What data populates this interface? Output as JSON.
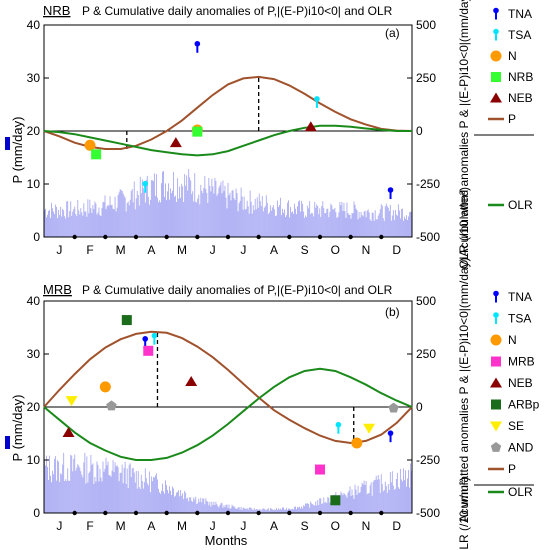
{
  "chart_data": [
    {
      "type": "line",
      "panel_label": "(a)",
      "region": "NRB",
      "title": "P &  Cumulative daily anomalies of P,|(E-P)i10<0| and OLR",
      "xlabel": "",
      "ylabel_left": "P (mm/day)",
      "ylabel_right": "Acumulatted anomalies P & |(E-P)i10<0|(mm/day)",
      "ylabel_right2": "OLR (/10 w/m²)",
      "ylim_left": [
        0,
        40
      ],
      "ylim_right": [
        -500,
        500
      ],
      "yticks_left": [
        "0",
        "10",
        "20",
        "30",
        "40"
      ],
      "yticks_right": [
        "-500",
        "-250",
        "0",
        "250",
        "500"
      ],
      "categories": [
        "J",
        "F",
        "M",
        "A",
        "M",
        "J",
        "J",
        "A",
        "S",
        "O",
        "N",
        "D"
      ],
      "bars_series": {
        "name": "P",
        "color": "#8d8ff0",
        "axis": "left"
      },
      "series": [
        {
          "name": "P",
          "color": "#a0522d",
          "axis": "right",
          "x": [
            0,
            0.5,
            1,
            1.5,
            2,
            2.5,
            3,
            3.5,
            4,
            4.5,
            5,
            5.5,
            6,
            6.5,
            7,
            7.5,
            8,
            8.5,
            9,
            9.5,
            10,
            10.5,
            11,
            11.5,
            12
          ],
          "values": [
            0,
            -25,
            -55,
            -75,
            -85,
            -85,
            -70,
            -40,
            0,
            50,
            110,
            170,
            220,
            248,
            255,
            245,
            215,
            175,
            130,
            90,
            55,
            30,
            10,
            2,
            0
          ]
        },
        {
          "name": "OLR",
          "color": "#1a8a1a",
          "axis": "right",
          "x": [
            0,
            0.5,
            1,
            1.5,
            2,
            2.5,
            3,
            3.5,
            4,
            4.5,
            5,
            5.5,
            6,
            6.5,
            7,
            7.5,
            8,
            8.5,
            9,
            9.5,
            10,
            10.5,
            11,
            11.5,
            12
          ],
          "values": [
            0,
            -5,
            -15,
            -30,
            -45,
            -60,
            -75,
            -90,
            -100,
            -110,
            -115,
            -110,
            -95,
            -70,
            -45,
            -20,
            0,
            15,
            25,
            25,
            20,
            12,
            5,
            0,
            0
          ]
        }
      ],
      "dashed_markers": [
        {
          "x": 2.7,
          "y_right": -90
        },
        {
          "x": 7.0,
          "y_right": 250
        }
      ],
      "legend": [
        "TNA",
        "TSA",
        "N",
        "NRB",
        "NEB",
        "P",
        "OLR"
      ],
      "markers": [
        {
          "name": "TNA",
          "shape": "pin",
          "color": "#0000ff",
          "x": 5.0,
          "y_right": 395
        },
        {
          "name": "TNA",
          "shape": "pin",
          "color": "#0000ff",
          "x": 11.3,
          "y_right": -295
        },
        {
          "name": "TSA",
          "shape": "pin",
          "color": "#00e5ff",
          "x": 3.3,
          "y_right": -265
        },
        {
          "name": "TSA",
          "shape": "pin",
          "color": "#00e5ff",
          "x": 5.0,
          "y_right": 0
        },
        {
          "name": "TSA",
          "shape": "pin",
          "color": "#00e5ff",
          "x": 8.9,
          "y_right": 135
        },
        {
          "name": "N",
          "shape": "circle",
          "color": "#ff9900",
          "x": 1.5,
          "y_right": -67
        },
        {
          "name": "N",
          "shape": "circle",
          "color": "#ff9900",
          "x": 5.0,
          "y_right": 5
        },
        {
          "name": "NRB",
          "shape": "square",
          "color": "#33ff33",
          "x": 1.7,
          "y_right": -110
        },
        {
          "name": "NRB",
          "shape": "square",
          "color": "#33ff33",
          "x": 5.0,
          "y_right": -3
        },
        {
          "name": "NEB",
          "shape": "triangle",
          "color": "#8b0000",
          "x": 4.3,
          "y_right": -55
        },
        {
          "name": "NEB",
          "shape": "triangle",
          "color": "#8b0000",
          "x": 8.7,
          "y_right": 20
        }
      ],
      "bar_envelope_x": [
        0,
        0.5,
        1,
        1.5,
        2,
        2.5,
        3,
        3.5,
        4,
        4.5,
        5,
        5.5,
        6,
        6.5,
        7,
        7.5,
        8,
        8.5,
        9,
        9.5,
        10,
        10.5,
        11,
        11.5,
        12
      ],
      "bar_envelope": [
        6,
        6,
        6,
        6.5,
        7,
        8,
        9.5,
        11,
        12,
        12,
        11,
        10,
        9,
        8,
        7.5,
        7,
        6.5,
        6,
        6,
        6,
        6,
        5.5,
        5.5,
        5.5,
        5.5
      ]
    },
    {
      "type": "line",
      "panel_label": "(b)",
      "region": "MRB",
      "title": "P &  Cumulative daily anomalies of P,|(E-P)i10<0| and OLR",
      "xlabel": "Months",
      "ylabel_left": "P (mm/day)",
      "ylabel_right": "Acumulatted anomalies P & |(E-P)i10<0|(mm/day)",
      "ylabel_right2": "OLR (/10 w/m²)",
      "ylim_left": [
        0,
        40
      ],
      "ylim_right": [
        -500,
        500
      ],
      "yticks_left": [
        "0",
        "10",
        "20",
        "30",
        "40"
      ],
      "yticks_right": [
        "-500",
        "-250",
        "0",
        "250",
        "500"
      ],
      "categories": [
        "J",
        "F",
        "M",
        "A",
        "M",
        "J",
        "J",
        "A",
        "S",
        "O",
        "N",
        "D"
      ],
      "bars_series": {
        "name": "P",
        "color": "#8d8ff0",
        "axis": "left"
      },
      "series": [
        {
          "name": "P",
          "color": "#a0522d",
          "axis": "right",
          "x": [
            0,
            0.5,
            1,
            1.5,
            2,
            2.5,
            3,
            3.5,
            4,
            4.5,
            5,
            5.5,
            6,
            6.5,
            7,
            7.5,
            8,
            8.5,
            9,
            9.5,
            10,
            10.5,
            11,
            11.5,
            12
          ],
          "values": [
            0,
            80,
            155,
            225,
            280,
            320,
            345,
            355,
            350,
            325,
            285,
            235,
            175,
            110,
            45,
            -15,
            -60,
            -100,
            -135,
            -160,
            -170,
            -160,
            -130,
            -75,
            0
          ]
        },
        {
          "name": "OLR",
          "color": "#1a8a1a",
          "axis": "right",
          "x": [
            0,
            0.5,
            1,
            1.5,
            2,
            2.5,
            3,
            3.5,
            4,
            4.5,
            5,
            5.5,
            6,
            6.5,
            7,
            7.5,
            8,
            8.5,
            9,
            9.5,
            10,
            10.5,
            11,
            11.5,
            12
          ],
          "values": [
            0,
            -60,
            -120,
            -170,
            -205,
            -235,
            -250,
            -250,
            -240,
            -215,
            -180,
            -135,
            -80,
            -20,
            40,
            95,
            140,
            170,
            180,
            170,
            140,
            105,
            65,
            30,
            0
          ]
        }
      ],
      "dashed_markers": [
        {
          "x": 3.7,
          "y_right": 355
        },
        {
          "x": 10.1,
          "y_right": -170
        }
      ],
      "legend": [
        "TNA",
        "TSA",
        "N",
        "MRB",
        "NEB",
        "ARBp",
        "SE",
        "AND",
        "P",
        "OLR"
      ],
      "markers": [
        {
          "name": "TNA",
          "shape": "pin",
          "color": "#0000ff",
          "x": 3.3,
          "y_right": 305
        },
        {
          "name": "TNA",
          "shape": "pin",
          "color": "#0000ff",
          "x": 11.3,
          "y_right": -140
        },
        {
          "name": "TSA",
          "shape": "pin",
          "color": "#00e5ff",
          "x": 3.6,
          "y_right": 320
        },
        {
          "name": "TSA",
          "shape": "pin",
          "color": "#00e5ff",
          "x": 9.6,
          "y_right": -100
        },
        {
          "name": "N",
          "shape": "circle",
          "color": "#ff9900",
          "x": 2.0,
          "y_right": 95
        },
        {
          "name": "N",
          "shape": "circle",
          "color": "#ff9900",
          "x": 10.2,
          "y_right": -170
        },
        {
          "name": "MRB",
          "shape": "square",
          "color": "#ff33cc",
          "x": 3.4,
          "y_right": 265
        },
        {
          "name": "MRB",
          "shape": "square",
          "color": "#ff33cc",
          "x": 9.0,
          "y_right": -295
        },
        {
          "name": "NEB",
          "shape": "triangle",
          "color": "#8b0000",
          "x": 0.8,
          "y_right": -120
        },
        {
          "name": "NEB",
          "shape": "triangle",
          "color": "#8b0000",
          "x": 4.8,
          "y_right": 120
        },
        {
          "name": "ARBp",
          "shape": "square",
          "color": "#1a6b1a",
          "x": 2.7,
          "y_right": 410
        },
        {
          "name": "ARBp",
          "shape": "square",
          "color": "#1a6b1a",
          "x": 9.5,
          "y_right": -440
        },
        {
          "name": "SE",
          "shape": "down-triangle",
          "color": "#ffee00",
          "x": 0.9,
          "y_right": 30
        },
        {
          "name": "SE",
          "shape": "down-triangle",
          "color": "#ffee00",
          "x": 10.6,
          "y_right": -100
        },
        {
          "name": "AND",
          "shape": "pentagon",
          "color": "#999999",
          "x": 2.2,
          "y_right": 5
        },
        {
          "name": "AND",
          "shape": "pentagon",
          "color": "#999999",
          "x": 11.4,
          "y_right": -5
        }
      ],
      "bar_envelope_x": [
        0,
        0.5,
        1,
        1.5,
        2,
        2.5,
        3,
        3.5,
        4,
        4.5,
        5,
        5.5,
        6,
        6.5,
        7,
        7.5,
        8,
        8.5,
        9,
        9.5,
        10,
        10.5,
        11,
        11.5,
        12
      ],
      "bar_envelope": [
        10,
        10,
        10,
        10,
        9.5,
        9,
        8,
        7,
        6,
        4.5,
        3,
        2,
        1.5,
        1,
        0.8,
        0.8,
        1,
        1.5,
        2.5,
        3.5,
        4.5,
        5.5,
        6.5,
        7.5,
        8.5
      ]
    }
  ],
  "legend_labels": {
    "a": {
      "TNA": "TNA",
      "TSA": "TSA",
      "N": "N",
      "NRB": "NRB",
      "NEB": "NEB",
      "P": "P",
      "OLR": "OLR"
    },
    "b": {
      "TNA": "TNA",
      "TSA": "TSA",
      "N": "N",
      "MRB": "MRB",
      "NEB": "NEB",
      "ARBp": "ARBp",
      "SE": "SE",
      "AND": "AND",
      "P": "P",
      "OLR": "OLR"
    }
  }
}
